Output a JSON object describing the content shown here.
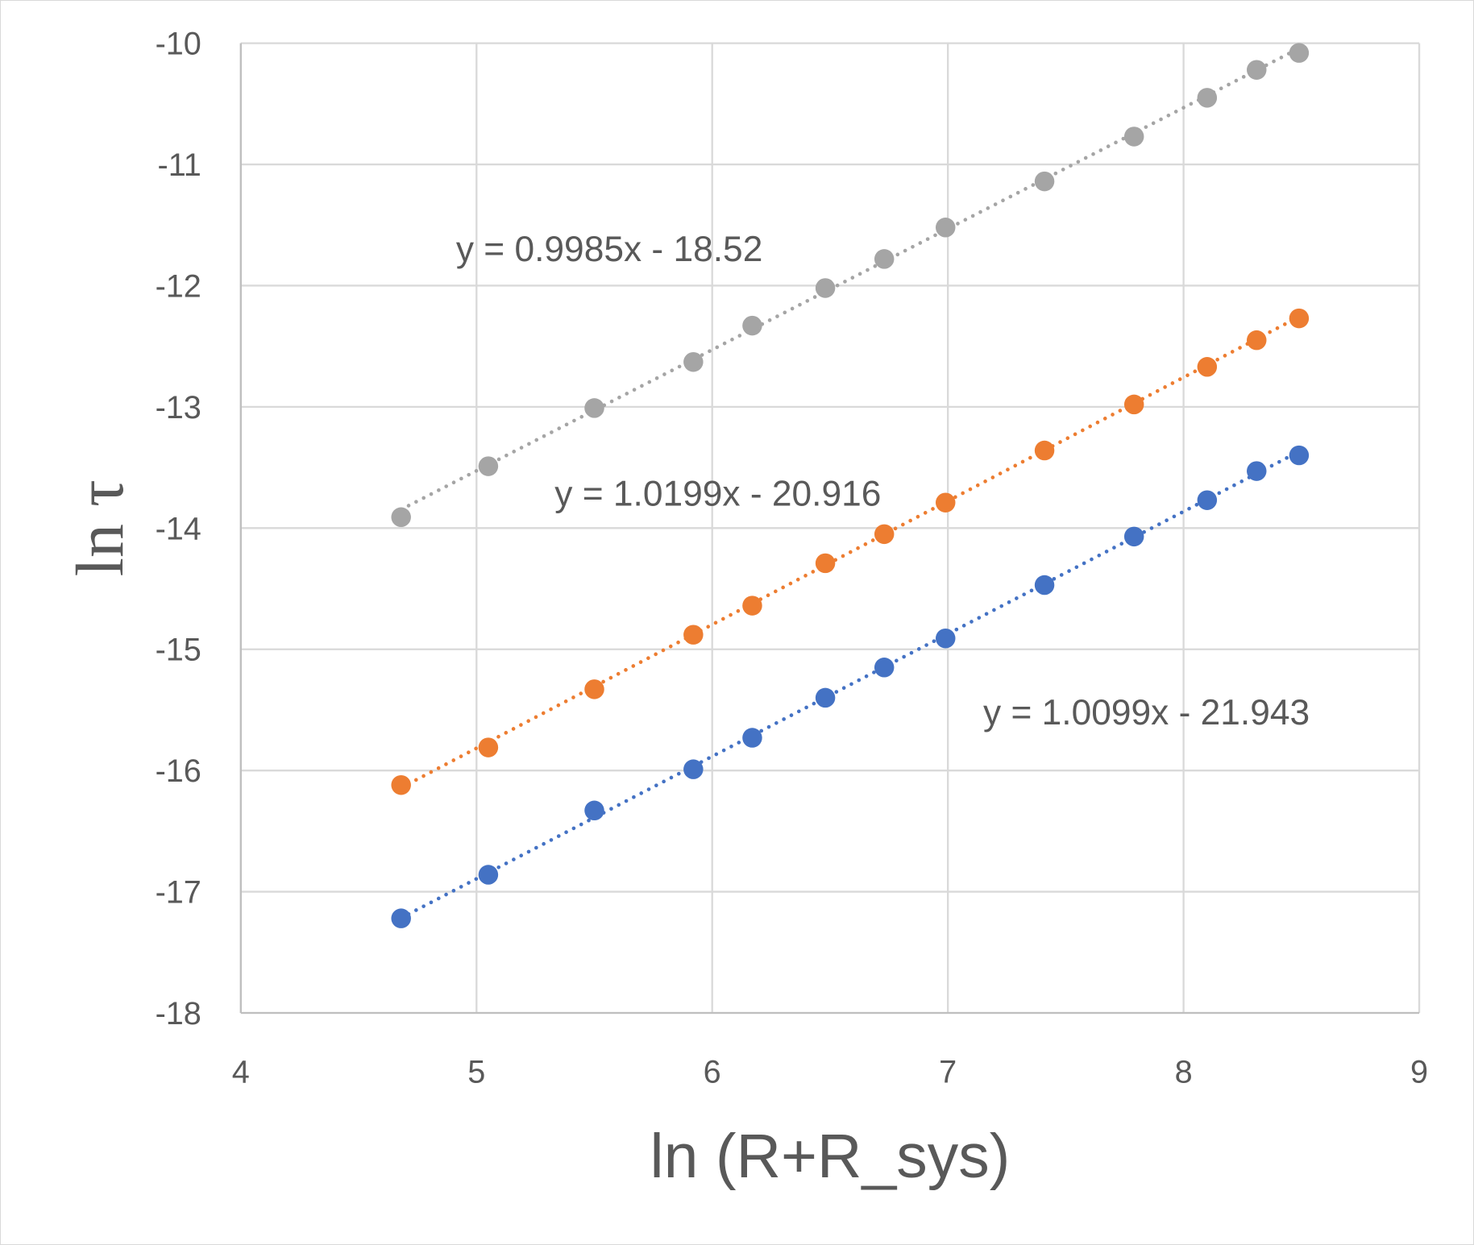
{
  "chart_data": {
    "type": "scatter",
    "title": "",
    "xlabel": "ln (R+R_sys)",
    "ylabel": "ln τ",
    "xlim": [
      4,
      9
    ],
    "ylim": [
      -18,
      -10
    ],
    "xticks": [
      "4",
      "5",
      "6",
      "7",
      "8",
      "9"
    ],
    "yticks": [
      "-10",
      "-11",
      "-12",
      "-13",
      "-14",
      "-15",
      "-16",
      "-17",
      "-18"
    ],
    "grid": true,
    "legend": "none",
    "x": [
      4.68,
      5.05,
      5.5,
      5.92,
      6.17,
      6.48,
      6.73,
      6.99,
      7.41,
      7.79,
      8.1,
      8.31,
      8.49
    ],
    "series": [
      {
        "name": "gray",
        "color": "#A5A5A5",
        "values": [
          -13.91,
          -13.49,
          -13.01,
          -12.63,
          -12.33,
          -12.02,
          -11.78,
          -11.52,
          -11.14,
          -10.77,
          -10.45,
          -10.22,
          -10.08
        ],
        "trendline": {
          "slope": 0.9985,
          "intercept": -18.52,
          "label": "y = 0.9985x - 18.52"
        }
      },
      {
        "name": "orange",
        "color": "#ED7D31",
        "values": [
          -16.12,
          -15.81,
          -15.33,
          -14.88,
          -14.64,
          -14.29,
          -14.05,
          -13.79,
          -13.36,
          -12.98,
          -12.67,
          -12.45,
          -12.27
        ],
        "trendline": {
          "slope": 1.0199,
          "intercept": -20.916,
          "label": "y = 1.0199x - 20.916"
        }
      },
      {
        "name": "blue",
        "color": "#4472C4",
        "values": [
          -17.22,
          -16.86,
          -16.33,
          -15.99,
          -15.73,
          -15.4,
          -15.15,
          -14.91,
          -14.47,
          -14.07,
          -13.77,
          -13.53,
          -13.4
        ],
        "trendline": {
          "slope": 1.0099,
          "intercept": -21.943,
          "label": "y = 1.0099x - 21.943"
        }
      }
    ]
  }
}
